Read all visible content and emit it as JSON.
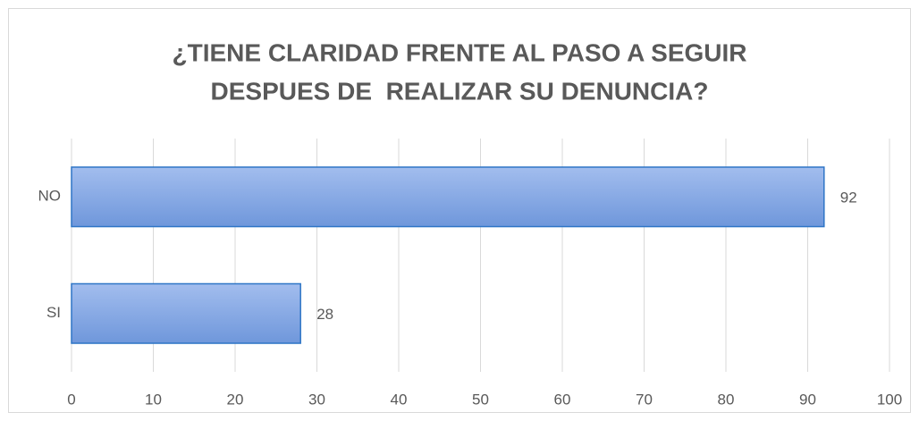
{
  "chart_data": {
    "type": "bar",
    "orientation": "horizontal",
    "title": [
      "¿TIENE CLARIDAD FRENTE AL PASO A SEGUIR",
      "DESPUES DE  REALIZAR SU DENUNCIA?"
    ],
    "categories": [
      "NO",
      "SI"
    ],
    "values": [
      92,
      28
    ],
    "color": "#7fa3e2",
    "xlim": [
      0,
      100
    ],
    "xticks": [
      0,
      10,
      20,
      30,
      40,
      50,
      60,
      70,
      80,
      90,
      100
    ],
    "grid": true
  }
}
